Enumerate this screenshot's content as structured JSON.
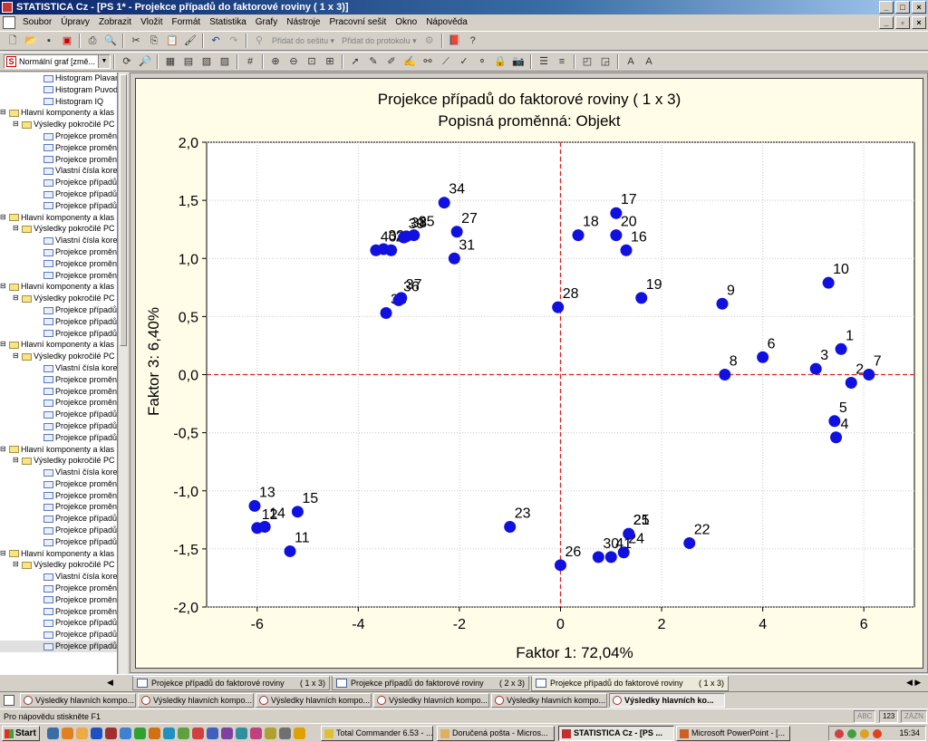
{
  "window": {
    "title": "STATISTICA Cz - [PS 1* - Projekce případů do faktorové roviny     ( 1 x   3)]"
  },
  "menu": [
    "Soubor",
    "Úpravy",
    "Zobrazit",
    "Vložit",
    "Formát",
    "Statistika",
    "Grafy",
    "Nástroje",
    "Pracovní sešit",
    "Okno",
    "Nápověda"
  ],
  "toolbar": {
    "add_to_workbook": "Přidat do sešitu ▾",
    "add_to_report": "Přidat do protokolu ▾",
    "graph_type": "Normální graf [změ..."
  },
  "tree": [
    {
      "level": 2,
      "label": "Histogram Plavan"
    },
    {
      "level": 2,
      "label": "Histogram Puvod"
    },
    {
      "level": 2,
      "label": "Histogram IQ"
    },
    {
      "level": 0,
      "label": "Hlavní komponenty a klas"
    },
    {
      "level": 1,
      "label": "Výsledky pokročilé PC"
    },
    {
      "level": 2,
      "label": "Projekce proměnn"
    },
    {
      "level": 2,
      "label": "Projekce proměnn"
    },
    {
      "level": 2,
      "label": "Projekce proměnn"
    },
    {
      "level": 2,
      "label": "Vlastní čísla  korel"
    },
    {
      "level": 2,
      "label": "Projekce případů"
    },
    {
      "level": 2,
      "label": "Projekce případů"
    },
    {
      "level": 2,
      "label": "Projekce případů"
    },
    {
      "level": 0,
      "label": "Hlavní komponenty a klas"
    },
    {
      "level": 1,
      "label": "Výsledky pokročilé PC"
    },
    {
      "level": 2,
      "label": "Vlastní čísla  korel"
    },
    {
      "level": 2,
      "label": "Projekce proměnn"
    },
    {
      "level": 2,
      "label": "Projekce proměnn"
    },
    {
      "level": 2,
      "label": "Projekce proměnn"
    },
    {
      "level": 0,
      "label": "Hlavní komponenty a klas"
    },
    {
      "level": 1,
      "label": "Výsledky pokročilé PC"
    },
    {
      "level": 2,
      "label": "Projekce případů"
    },
    {
      "level": 2,
      "label": "Projekce případů"
    },
    {
      "level": 2,
      "label": "Projekce případů"
    },
    {
      "level": 0,
      "label": "Hlavní komponenty a klas"
    },
    {
      "level": 1,
      "label": "Výsledky pokročilé PC"
    },
    {
      "level": 2,
      "label": "Vlastní čísla  korel"
    },
    {
      "level": 2,
      "label": "Projekce proměnn"
    },
    {
      "level": 2,
      "label": "Projekce proměnn"
    },
    {
      "level": 2,
      "label": "Projekce proměnn"
    },
    {
      "level": 2,
      "label": "Projekce případů"
    },
    {
      "level": 2,
      "label": "Projekce případů"
    },
    {
      "level": 2,
      "label": "Projekce případů"
    },
    {
      "level": 0,
      "label": "Hlavní komponenty a klas"
    },
    {
      "level": 1,
      "label": "Výsledky pokročilé PC"
    },
    {
      "level": 2,
      "label": "Vlastní čísla  korel"
    },
    {
      "level": 2,
      "label": "Projekce proměnn"
    },
    {
      "level": 2,
      "label": "Projekce proměnn"
    },
    {
      "level": 2,
      "label": "Projekce proměnn"
    },
    {
      "level": 2,
      "label": "Projekce případů"
    },
    {
      "level": 2,
      "label": "Projekce případů"
    },
    {
      "level": 2,
      "label": "Projekce případů"
    },
    {
      "level": 0,
      "label": "Hlavní komponenty a klas"
    },
    {
      "level": 1,
      "label": "Výsledky pokročilé PC"
    },
    {
      "level": 2,
      "label": "Vlastní čísla  korel"
    },
    {
      "level": 2,
      "label": "Projekce proměnn"
    },
    {
      "level": 2,
      "label": "Projekce proměnn"
    },
    {
      "level": 2,
      "label": "Projekce proměnn"
    },
    {
      "level": 2,
      "label": "Projekce případů"
    },
    {
      "level": 2,
      "label": "Projekce případů"
    },
    {
      "level": 2,
      "label": "Projekce případů"
    }
  ],
  "chart_data": {
    "type": "scatter",
    "title": "Projekce případů do faktorové roviny      ( 1 x   3)",
    "subtitle": "Popisná proměnná:   Objekt",
    "xlabel": "Faktor 1: 72,04%",
    "ylabel": "Faktor 3:  6,40%",
    "xlim": [
      -7.0,
      7.0
    ],
    "ylim": [
      -2.0,
      2.0
    ],
    "xticks": [
      -6,
      -4,
      -2,
      0,
      2,
      4,
      6
    ],
    "xtick_labels": [
      "-6",
      "-4",
      "-2",
      "0",
      "2",
      "4",
      "6"
    ],
    "yticks": [
      2.0,
      1.5,
      1.0,
      0.5,
      0.0,
      -0.5,
      -1.0,
      -1.5,
      -2.0
    ],
    "ytick_labels": [
      "2,0",
      "1,5",
      "1,0",
      "0,5",
      "0,0",
      "-0,5",
      "-1,0",
      "-1,5",
      "-2,0"
    ],
    "grid": true,
    "reference_lines": {
      "x": 0,
      "y": 0,
      "color": "#e02020"
    },
    "point_color": "#1010e0",
    "points": [
      {
        "label": "1",
        "x": 5.55,
        "y": 0.22
      },
      {
        "label": "2",
        "x": 5.75,
        "y": -0.07
      },
      {
        "label": "3",
        "x": 5.05,
        "y": 0.05
      },
      {
        "label": "4",
        "x": 5.45,
        "y": -0.54
      },
      {
        "label": "5",
        "x": 5.42,
        "y": -0.4
      },
      {
        "label": "6",
        "x": 4.0,
        "y": 0.15
      },
      {
        "label": "7",
        "x": 6.1,
        "y": 0.0
      },
      {
        "label": "8",
        "x": 3.25,
        "y": 0.0
      },
      {
        "label": "9",
        "x": 3.2,
        "y": 0.61
      },
      {
        "label": "10",
        "x": 5.3,
        "y": 0.79
      },
      {
        "label": "11",
        "x": -5.35,
        "y": -1.52
      },
      {
        "label": "12",
        "x": -6.0,
        "y": -1.32
      },
      {
        "label": "13",
        "x": -6.05,
        "y": -1.13
      },
      {
        "label": "14",
        "x": -5.85,
        "y": -1.31
      },
      {
        "label": "15",
        "x": -5.2,
        "y": -1.18
      },
      {
        "label": "16",
        "x": 1.3,
        "y": 1.07
      },
      {
        "label": "17",
        "x": 1.1,
        "y": 1.39
      },
      {
        "label": "18",
        "x": 0.35,
        "y": 1.2
      },
      {
        "label": "19",
        "x": 1.6,
        "y": 0.66
      },
      {
        "label": "20",
        "x": 1.1,
        "y": 1.2
      },
      {
        "label": "21",
        "x": 1.35,
        "y": -1.37
      },
      {
        "label": "22",
        "x": 2.55,
        "y": -1.45
      },
      {
        "label": "23",
        "x": -1.0,
        "y": -1.31
      },
      {
        "label": "24",
        "x": 1.25,
        "y": -1.53
      },
      {
        "label": "25",
        "x": 1.35,
        "y": -1.37
      },
      {
        "label": "26",
        "x": 0.0,
        "y": -1.64
      },
      {
        "label": "27",
        "x": -2.05,
        "y": 1.23
      },
      {
        "label": "28",
        "x": -0.05,
        "y": 0.58
      },
      {
        "label": "29",
        "x": -3.35,
        "y": 1.07
      },
      {
        "label": "30",
        "x": 0.75,
        "y": -1.57
      },
      {
        "label": "31",
        "x": -2.1,
        "y": 1.0
      },
      {
        "label": "32",
        "x": -3.5,
        "y": 1.08
      },
      {
        "label": "33",
        "x": -3.45,
        "y": 0.53
      },
      {
        "label": "34",
        "x": -2.3,
        "y": 1.48
      },
      {
        "label": "35",
        "x": -2.9,
        "y": 1.2
      },
      {
        "label": "36",
        "x": -3.2,
        "y": 0.64
      },
      {
        "label": "37",
        "x": -3.15,
        "y": 0.66
      },
      {
        "label": "38",
        "x": -3.05,
        "y": 1.19
      },
      {
        "label": "39",
        "x": -3.1,
        "y": 1.18
      },
      {
        "label": "40",
        "x": -3.65,
        "y": 1.07
      },
      {
        "label": "41",
        "x": 1.0,
        "y": -1.57
      }
    ]
  },
  "tabs": [
    {
      "label": "Projekce případů do faktorové roviny",
      "suffix": "( 1 x   3)",
      "active": false
    },
    {
      "label": "Projekce případů do faktorové roviny",
      "suffix": "( 2 x   3)",
      "active": false
    },
    {
      "label": "Projekce případů do faktorové roviny",
      "suffix": "( 1 x   3)",
      "active": true
    }
  ],
  "workspaces": [
    {
      "label": "Výsledky hlavních kompo...",
      "active": false
    },
    {
      "label": "Výsledky hlavních kompo...",
      "active": false
    },
    {
      "label": "Výsledky hlavních kompo...",
      "active": false
    },
    {
      "label": "Výsledky hlavních kompo...",
      "active": false
    },
    {
      "label": "Výsledky hlavních kompo...",
      "active": false
    },
    {
      "label": "Výsledky hlavních ko...",
      "active": true
    }
  ],
  "status": {
    "help": "Pro nápovědu stiskněte F1",
    "caps": "ABC",
    "num": "123",
    "scroll": "ZÁZN"
  },
  "taskbar": {
    "start": "Start",
    "tasks": [
      {
        "label": "Total Commander 6.53 - ...",
        "active": false
      },
      {
        "label": "Doručená pošta - Micros...",
        "active": false
      },
      {
        "label": "STATISTICA Cz - [PS ...",
        "active": true
      },
      {
        "label": "Microsoft PowerPoint - [...",
        "active": false
      }
    ],
    "clock": "15:34"
  }
}
